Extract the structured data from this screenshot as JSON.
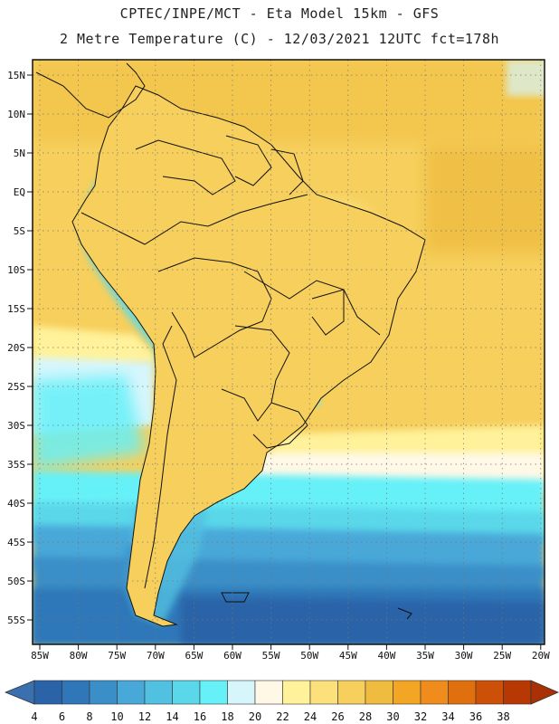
{
  "title_line1": "CPTEC/INPE/MCT -  Eta Model 15km - GFS",
  "title_line2": "2 Metre Temperature (C) - 12/03/2021 12UTC fct=178h",
  "lat_labels": [
    "15N",
    "10N",
    "5N",
    "EQ",
    "5S",
    "10S",
    "15S",
    "20S",
    "25S",
    "30S",
    "35S",
    "40S",
    "45S",
    "50S",
    "55S"
  ],
  "lon_labels": [
    "85W",
    "80W",
    "75W",
    "70W",
    "65W",
    "60W",
    "55W",
    "50W",
    "45W",
    "40W",
    "35W",
    "30W",
    "25W",
    "20W"
  ],
  "colorbar": {
    "labels": [
      "4",
      "6",
      "8",
      "10",
      "12",
      "14",
      "16",
      "18",
      "20",
      "22",
      "24",
      "26",
      "28",
      "30",
      "32",
      "34",
      "36",
      "38"
    ],
    "colors": [
      "#2a63a8",
      "#2f77b8",
      "#3a8fc8",
      "#48a8d8",
      "#52c0e0",
      "#5ad8ea",
      "#66f0f8",
      "#d6f6fc",
      "#fff8e6",
      "#fff29a",
      "#fbe07c",
      "#f6cf5c",
      "#efbc40",
      "#f2a624",
      "#ef8c1c",
      "#e0700e",
      "#cc5008",
      "#b83804"
    ],
    "min_color": "#3a6fb0",
    "max_color": "#a83206"
  }
}
